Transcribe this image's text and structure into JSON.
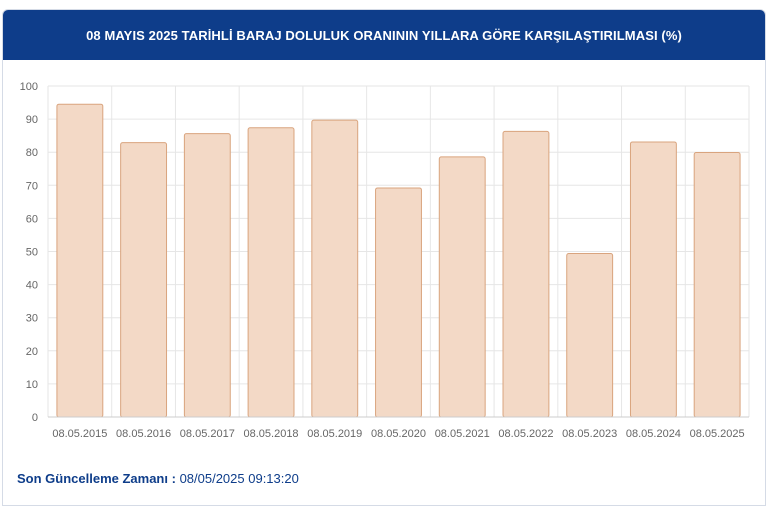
{
  "header": {
    "title": "08 MAYIS 2025 TARİHLİ BARAJ DOLULUK ORANININ YILLARA GÖRE KARŞILAŞTIRILMASI (%)"
  },
  "footer": {
    "label": "Son Güncelleme Zamanı :",
    "value": "08/05/2025 09:13:20"
  },
  "colors": {
    "header_bg": "#0e3d8a",
    "bar_fill": "#f3d9c6",
    "bar_stroke": "#d9a47e",
    "grid": "#e6e6e6",
    "axis_text": "#666666"
  },
  "chart_data": {
    "type": "bar",
    "title": "",
    "xlabel": "",
    "ylabel": "",
    "categories": [
      "08.05.2015",
      "08.05.2016",
      "08.05.2017",
      "08.05.2018",
      "08.05.2019",
      "08.05.2020",
      "08.05.2021",
      "08.05.2022",
      "08.05.2023",
      "08.05.2024",
      "08.05.2025"
    ],
    "values": [
      94.5,
      82.9,
      85.6,
      87.4,
      89.7,
      69.2,
      78.6,
      86.3,
      49.4,
      83.1,
      79.9
    ],
    "ylim": [
      0,
      100
    ],
    "yticks": [
      0,
      10,
      20,
      30,
      40,
      50,
      60,
      70,
      80,
      90,
      100
    ],
    "grid": true,
    "legend": "none"
  }
}
